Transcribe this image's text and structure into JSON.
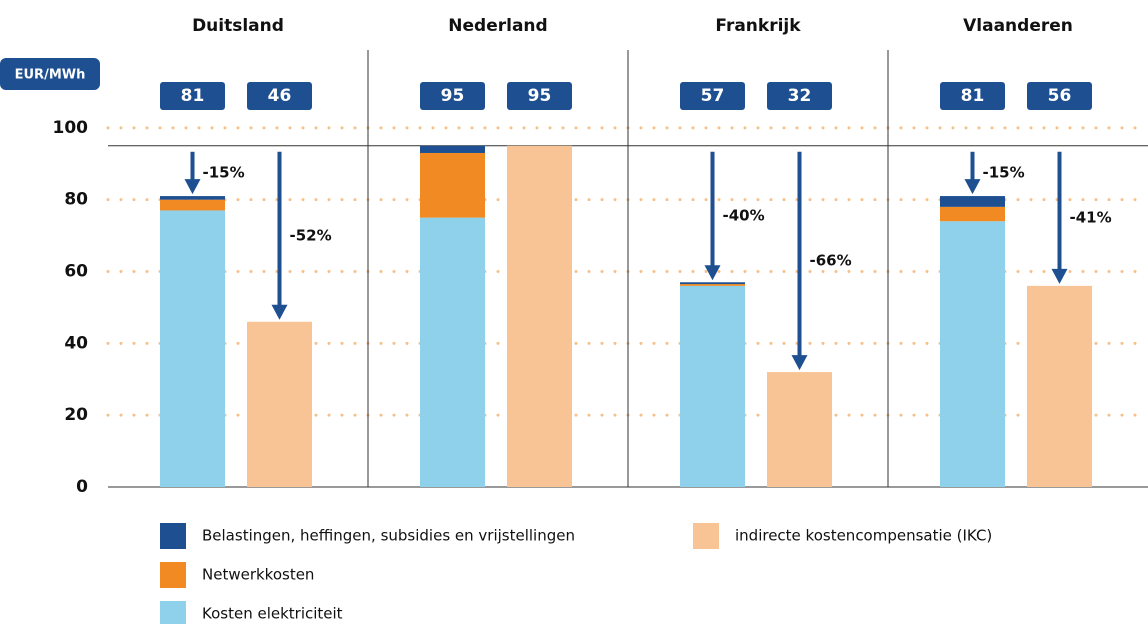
{
  "chart_data": {
    "type": "bar",
    "y_unit": "EUR/MWh",
    "categories": [
      "Duitsland",
      "Nederland",
      "Frankrijk",
      "Vlaanderen"
    ],
    "series": [
      {
        "name": "Kosten elektriciteit",
        "color": "#8fd1ea",
        "values": [
          77,
          75,
          56,
          74
        ]
      },
      {
        "name": "Netwerkkosten",
        "color": "#f18a22",
        "values": [
          3,
          18,
          0.5,
          4
        ]
      },
      {
        "name": "Belastingen, heffingen, subsidies en vrijstellingen",
        "color": "#1d4f91",
        "values": [
          1,
          2,
          0.5,
          3
        ]
      },
      {
        "name": "indirecte kostencompensatie (IKC)",
        "color": "#f9c495",
        "values": [
          46,
          95,
          32,
          56
        ],
        "separate": true
      }
    ],
    "totals": [
      81,
      95,
      57,
      81
    ],
    "reference_value": 95,
    "total_reduction_labels": [
      "-15%",
      null,
      "-40%",
      "-15%"
    ],
    "ikc_reduction_labels": [
      "-52%",
      null,
      "-66%",
      "-41%"
    ],
    "ylim": [
      0,
      120
    ],
    "yticks": [
      0,
      20,
      40,
      60,
      80,
      100
    ],
    "grid": true
  }
}
